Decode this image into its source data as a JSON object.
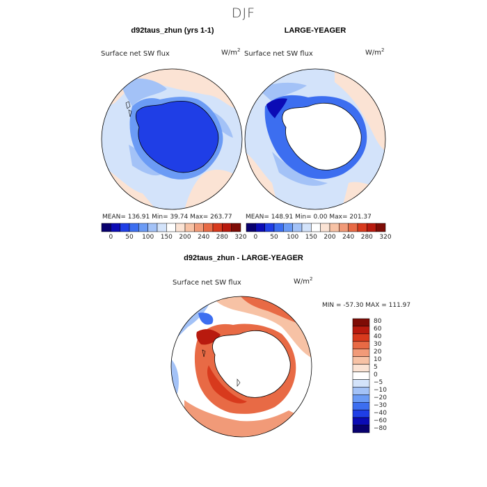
{
  "title": "DJF",
  "chart_data": [
    {
      "type": "heatmap",
      "projection": "south-polar-stereographic",
      "title": "d92taus_zhun (yrs 1-1)",
      "variable": "Surface net SW flux",
      "units": "W/m",
      "units_exp": "2",
      "stats": {
        "mean": "136.91",
        "min": "39.74",
        "max": "263.77"
      },
      "stats_text": "MEAN= 136.91   Min=  39.74   Max= 263.77",
      "colorbar": {
        "colors": [
          "#08006e",
          "#0b0bb5",
          "#1f3ee6",
          "#3c6ef0",
          "#6b9bf5",
          "#a3c2f7",
          "#d3e3fa",
          "#ffffff",
          "#fbe3d4",
          "#f7c2a5",
          "#f19a78",
          "#e86a45",
          "#d83a1d",
          "#b81a0e",
          "#7e0c06"
        ],
        "ticks": [
          "0",
          "50",
          "100",
          "150",
          "200",
          "240",
          "280",
          "320"
        ]
      },
      "field": "blue over Antarctic ice sheet (~50-100), light blue and light peach over Southern Ocean (~150-240)"
    },
    {
      "type": "heatmap",
      "projection": "south-polar-stereographic",
      "title": "LARGE-YEAGER",
      "variable": "Surface net SW flux",
      "units": "W/m",
      "units_exp": "2",
      "stats": {
        "mean": "148.91",
        "min": "0.00",
        "max": "201.37"
      },
      "stats_text": "MEAN= 148.91   Min=   0.00   Max= 201.37",
      "colorbar": {
        "colors": [
          "#08006e",
          "#0b0bb5",
          "#1f3ee6",
          "#3c6ef0",
          "#6b9bf5",
          "#a3c2f7",
          "#d3e3fa",
          "#ffffff",
          "#fbe3d4",
          "#f7c2a5",
          "#f19a78",
          "#e86a45",
          "#d83a1d",
          "#b81a0e",
          "#7e0c06"
        ],
        "ticks": [
          "0",
          "50",
          "100",
          "150",
          "200",
          "240",
          "280",
          "320"
        ]
      },
      "field": "Antarctic continent masked (white); dark blue ring at sea-ice edge; light blue/peach elsewhere"
    },
    {
      "type": "heatmap",
      "projection": "south-polar-stereographic",
      "title": "d92taus_zhun - LARGE-YEAGER",
      "variable": "Surface net SW flux",
      "units": "W/m",
      "units_exp": "2",
      "stats": {
        "min": "-57.30",
        "max": "111.97"
      },
      "stats_text": "MIN = -57.30 MAX = 111.97",
      "colorbar": {
        "colors": [
          "#08006e",
          "#0b0bb5",
          "#1f3ee6",
          "#3c6ef0",
          "#6b9bf5",
          "#a3c2f7",
          "#d3e3fa",
          "#ffffff",
          "#fbe3d4",
          "#f7c2a5",
          "#f19a78",
          "#e86a45",
          "#d83a1d",
          "#b81a0e",
          "#7e0c06"
        ],
        "ticks": [
          "80",
          "60",
          "40",
          "30",
          "20",
          "10",
          "5",
          "0",
          "−5",
          "−10",
          "−20",
          "−30",
          "−40",
          "−60",
          "−80"
        ]
      },
      "field": "red positive differences ringing Antarctica (sea-ice zone), mixed red/blue over Southern Ocean"
    }
  ]
}
